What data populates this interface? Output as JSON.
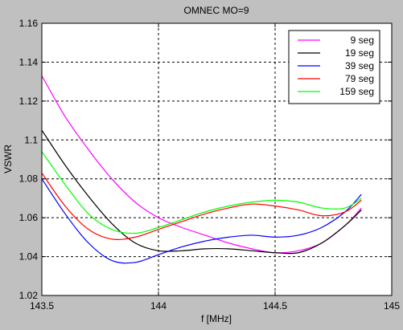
{
  "chart_data": {
    "type": "line",
    "title": "OMNEC MO=9",
    "xlabel": "f [MHz]",
    "ylabel": "VSWR",
    "xlim": [
      143.5,
      145
    ],
    "ylim": [
      1.02,
      1.16
    ],
    "xticks": [
      "143.5",
      "144",
      "144.5",
      "145"
    ],
    "yticks": [
      "1.02",
      "1.04",
      "1.06",
      "1.08",
      "1.1",
      "1.12",
      "1.14",
      "1.16"
    ],
    "grid": true,
    "legend_position": "top-right",
    "series": [
      {
        "name": "9 seg",
        "color": "#ff00ff",
        "x": [
          143.5,
          143.6,
          143.7,
          143.8,
          143.9,
          144.0,
          144.1,
          144.2,
          144.3,
          144.4,
          144.5,
          144.6,
          144.7,
          144.8,
          144.87
        ],
        "y": [
          1.133,
          1.112,
          1.095,
          1.08,
          1.068,
          1.06,
          1.055,
          1.051,
          1.047,
          1.044,
          1.042,
          1.043,
          1.047,
          1.056,
          1.065
        ]
      },
      {
        "name": "19 seg",
        "color": "#000000",
        "x": [
          143.5,
          143.6,
          143.7,
          143.8,
          143.9,
          144.0,
          144.1,
          144.2,
          144.3,
          144.4,
          144.5,
          144.6,
          144.7,
          144.8,
          144.87
        ],
        "y": [
          1.105,
          1.087,
          1.071,
          1.057,
          1.047,
          1.043,
          1.043,
          1.044,
          1.044,
          1.043,
          1.042,
          1.042,
          1.047,
          1.056,
          1.064
        ]
      },
      {
        "name": "39 seg",
        "color": "#0000ff",
        "x": [
          143.5,
          143.6,
          143.7,
          143.8,
          143.9,
          144.0,
          144.1,
          144.2,
          144.3,
          144.4,
          144.5,
          144.6,
          144.7,
          144.8,
          144.87
        ],
        "y": [
          1.08,
          1.062,
          1.047,
          1.038,
          1.037,
          1.041,
          1.045,
          1.048,
          1.05,
          1.051,
          1.05,
          1.051,
          1.055,
          1.063,
          1.072
        ]
      },
      {
        "name": "79 seg",
        "color": "#ff0000",
        "x": [
          143.5,
          143.6,
          143.7,
          143.8,
          143.9,
          144.0,
          144.1,
          144.2,
          144.3,
          144.4,
          144.5,
          144.6,
          144.7,
          144.8,
          144.87
        ],
        "y": [
          1.083,
          1.066,
          1.054,
          1.049,
          1.05,
          1.054,
          1.058,
          1.062,
          1.065,
          1.067,
          1.066,
          1.064,
          1.061,
          1.063,
          1.069
        ]
      },
      {
        "name": "159 seg",
        "color": "#00ff00",
        "x": [
          143.5,
          143.6,
          143.7,
          143.8,
          143.9,
          144.0,
          144.1,
          144.2,
          144.3,
          144.4,
          144.5,
          144.6,
          144.7,
          144.8,
          144.87
        ],
        "y": [
          1.094,
          1.077,
          1.062,
          1.054,
          1.052,
          1.055,
          1.059,
          1.063,
          1.066,
          1.068,
          1.069,
          1.068,
          1.065,
          1.065,
          1.07
        ]
      }
    ]
  }
}
